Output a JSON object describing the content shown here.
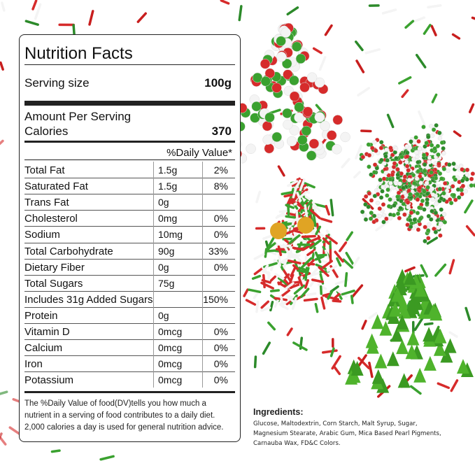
{
  "nutrition_facts": {
    "title": "Nutrition Facts",
    "serving_size_label": "Serving size",
    "serving_size": "100g",
    "amount_per_serving": "Amount Per Serving",
    "calories_label": "Calories",
    "calories": "370",
    "daily_value_header": "%Daily Value*",
    "rows": [
      {
        "name": "Total Fat",
        "amount": "1.5g",
        "dv": "2%"
      },
      {
        "name": "Saturated Fat",
        "amount": "1.5g",
        "dv": "8%"
      },
      {
        "name": "Trans Fat",
        "amount": "0g"
      },
      {
        "name": "Cholesterol",
        "amount": "0mg",
        "dv": "0%"
      },
      {
        "name": "Sodium",
        "amount": "10mg",
        "dv": "0%"
      },
      {
        "name": "Total Carbohydrate",
        "amount": "90g",
        "dv": "33%"
      },
      {
        "name": "Dietary Fiber",
        "amount": "0g",
        "dv": "0%"
      },
      {
        "name": "Total Sugars",
        "amount": "75g"
      },
      {
        "name": "Includes 31g Added Sugars",
        "dv": "150%"
      },
      {
        "name": "Protein",
        "amount": "0g"
      },
      {
        "name": "Vitamin D",
        "amount": "0mcg",
        "dv": "0%"
      },
      {
        "name": "Calcium",
        "amount": "0mcg",
        "dv": "0%"
      },
      {
        "name": "Iron",
        "amount": "0mcg",
        "dv": "0%"
      },
      {
        "name": "Potassium",
        "amount": "0mcg",
        "dv": "0%"
      }
    ],
    "footnote": [
      "The %Daily Value of food(DV)tells you how much a",
      "nutrient in a serving of food contributes to a daily diet.",
      "2,000 calories a day is used for general nutrition advice."
    ]
  },
  "ingredients": {
    "heading": "Ingredients:",
    "lines": [
      "Glucose, Maltodextrin, Corn Starch, Malt Syrup, Sugar,",
      "Magnesium Stearate, Arabic Gum, Mica Based Pearl Pigments,",
      "Carnauba Wax, FD&C Colors."
    ]
  }
}
